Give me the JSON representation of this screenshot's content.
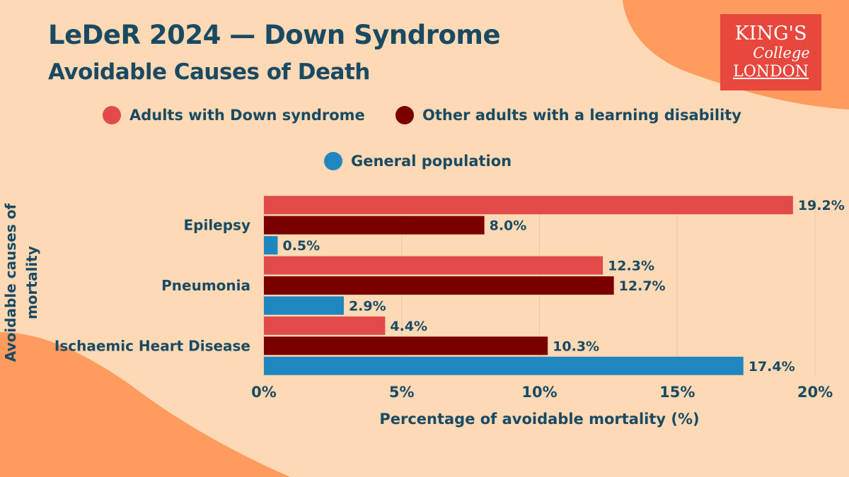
{
  "title": "LeDeR 2024 — Down Syndrome",
  "subtitle": "Avoidable Causes of Death",
  "logo": {
    "line1": "KING'S",
    "line2": "College",
    "line3": "LONDON"
  },
  "legend": [
    {
      "label": "Adults with Down syndrome",
      "color": "#e24b4a"
    },
    {
      "label": "Other adults with a learning disability",
      "color": "#7a0000"
    },
    {
      "label": "General population",
      "color": "#1f86bf"
    }
  ],
  "chart_data": {
    "type": "bar",
    "orientation": "horizontal",
    "title": "LeDeR 2024 — Down Syndrome",
    "subtitle": "Avoidable Causes of Death",
    "categories": [
      "Epilepsy",
      "Pneumonia",
      "Ischaemic Heart Disease"
    ],
    "series": [
      {
        "name": "Adults with Down syndrome",
        "color": "#e24b4a",
        "values": [
          19.2,
          12.3,
          4.4
        ],
        "labels": [
          "19.2%",
          "12.3%",
          "4.4%"
        ]
      },
      {
        "name": "Other adults with a learning disability",
        "color": "#7a0000",
        "values": [
          8.0,
          12.7,
          10.3
        ],
        "labels": [
          "8.0%",
          "12.7%",
          "10.3%"
        ]
      },
      {
        "name": "General population",
        "color": "#1f86bf",
        "values": [
          0.5,
          2.9,
          17.4
        ],
        "labels": [
          "0.5%",
          "2.9%",
          "17.4%"
        ]
      }
    ],
    "xlabel": "Percentage of avoidable mortality (%)",
    "ylabel": "Avoidable causes of mortality",
    "xlim": [
      0,
      20
    ],
    "xticks": [
      0,
      5,
      10,
      15,
      20
    ],
    "xtick_labels": [
      "0%",
      "5%",
      "10%",
      "15%",
      "20%"
    ],
    "grid": "vertical",
    "legend_position": "top"
  }
}
